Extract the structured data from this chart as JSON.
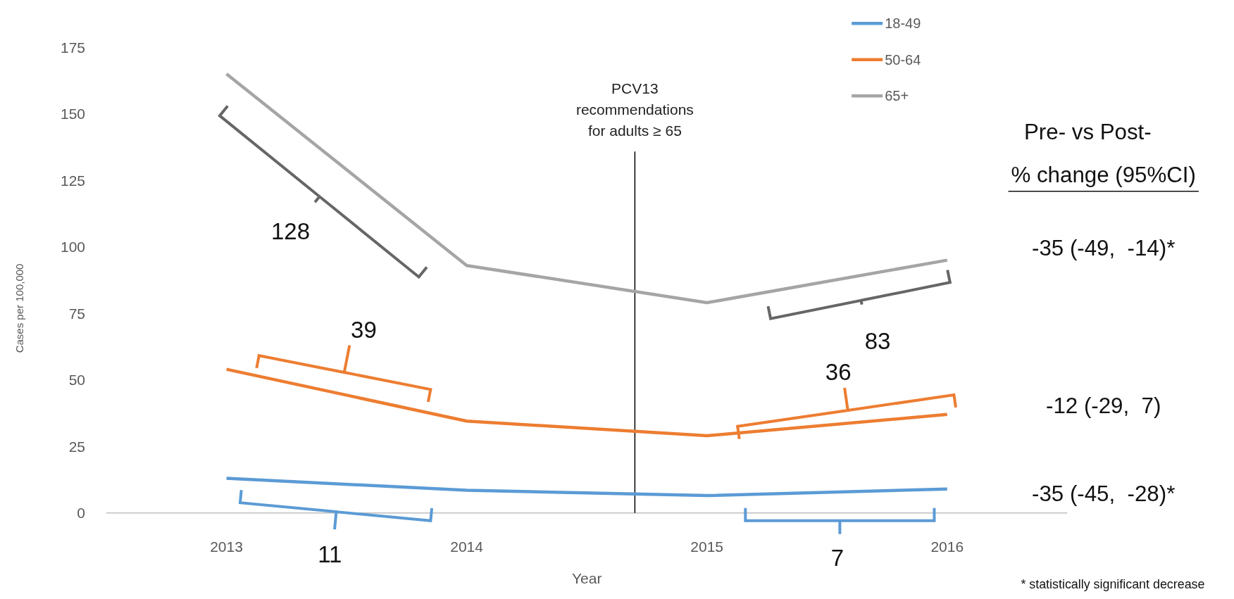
{
  "chart_data": {
    "type": "line",
    "xlabel": "Year",
    "ylabel": "Cases per 100,000",
    "x": [
      2013,
      2014,
      2015,
      2016
    ],
    "xlim": [
      2012.5,
      2016.5
    ],
    "xticks": [
      2013,
      2014,
      2015,
      2016
    ],
    "ylim": [
      0,
      175
    ],
    "yticks": [
      0,
      25,
      50,
      75,
      100,
      125,
      150,
      175
    ],
    "series": [
      {
        "name": "18-49",
        "color": "#5b9bd5",
        "values": [
          13,
          8.5,
          6.5,
          9
        ]
      },
      {
        "name": "50-64",
        "color": "#ed7d31",
        "values": [
          54,
          34.5,
          29,
          37
        ]
      },
      {
        "name": "65+",
        "color": "#a5a5a5",
        "values": [
          165,
          93,
          79,
          95
        ]
      }
    ],
    "legend": "top right",
    "marker": "none",
    "line_style": "solid",
    "ref_lines": [
      {
        "axis": "x",
        "value": 2014.7,
        "label": "PCV13 recommendations for adults ≥ 65",
        "color": "#000000"
      }
    ],
    "annotations": [
      "128",
      "39",
      "11",
      "83",
      "36",
      "7",
      "Pre- vs Post-",
      "% change (95%CI)",
      "-35 (-49,  -14)*",
      "-12 (-29,  7)",
      "-35 (-45,  -28)*",
      "* statistically significant decrease"
    ]
  }
}
